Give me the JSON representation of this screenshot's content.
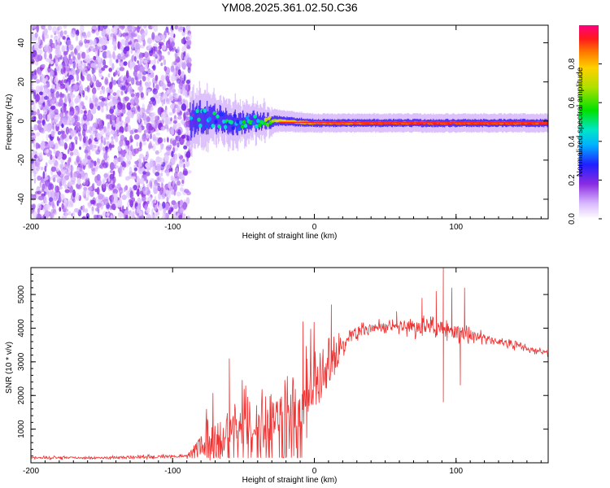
{
  "title": "YM08.2025.361.02.50.C36",
  "chart_data": [
    {
      "type": "heatmap",
      "xlabel": "Height of straight line (km)",
      "ylabel": "Frequency (Hz)",
      "xlim": [
        -200,
        165
      ],
      "ylim": [
        -50,
        49
      ],
      "xticks": [
        -200,
        -100,
        0,
        100
      ],
      "yticks": [
        -40,
        -20,
        0,
        20,
        40
      ],
      "noise_region": [
        -200,
        -88
      ],
      "signal_onset_km": -88,
      "ridge": [
        {
          "x": -88,
          "y": 0,
          "amp": 0.25,
          "spread": 8
        },
        {
          "x": -80,
          "y": 2,
          "amp": 0.45,
          "spread": 7
        },
        {
          "x": -70,
          "y": 1,
          "amp": 0.4,
          "spread": 6
        },
        {
          "x": -55,
          "y": -1,
          "amp": 0.4,
          "spread": 5
        },
        {
          "x": -40,
          "y": 0,
          "amp": 0.45,
          "spread": 4
        },
        {
          "x": -25,
          "y": 0,
          "amp": 0.75,
          "spread": 2.5
        },
        {
          "x": 0,
          "y": -1,
          "amp": 0.85,
          "spread": 2
        },
        {
          "x": 50,
          "y": -1,
          "amp": 0.9,
          "spread": 2
        },
        {
          "x": 100,
          "y": -1,
          "amp": 0.9,
          "spread": 2
        },
        {
          "x": 165,
          "y": -1,
          "amp": 0.9,
          "spread": 2
        }
      ],
      "colorbar": {
        "label": "Normalized spectral amplitude",
        "ticks": [
          "0.0",
          "0.2",
          "0.4",
          "0.6",
          "0.8"
        ],
        "range": [
          0,
          1
        ]
      }
    },
    {
      "type": "line",
      "xlabel": "Height of straight line (km)",
      "ylabel": "SNR (10 * v/v)",
      "xlim": [
        -200,
        165
      ],
      "ylim": [
        0,
        5800
      ],
      "xticks": [
        -200,
        -100,
        0,
        100
      ],
      "yticks": [
        1000,
        2000,
        3000,
        4000,
        5000
      ],
      "color": "#ee3333",
      "envelope": {
        "x": [
          -200,
          -150,
          -90,
          -80,
          -70,
          -50,
          -30,
          -10,
          10,
          25,
          40,
          60,
          80,
          100,
          120,
          140,
          165
        ],
        "base": [
          150,
          150,
          200,
          450,
          700,
          1000,
          1300,
          1700,
          2700,
          3800,
          4000,
          4050,
          4050,
          3900,
          3700,
          3500,
          3250
        ],
        "amp": [
          60,
          60,
          80,
          700,
          900,
          1000,
          1100,
          1300,
          1000,
          300,
          250,
          300,
          450,
          400,
          200,
          150,
          120
        ]
      },
      "spikes": [
        {
          "x": -60,
          "y": 3100
        },
        {
          "x": -8,
          "y": 4200
        },
        {
          "x": 12,
          "y": 4700
        },
        {
          "x": 58,
          "y": 4500
        },
        {
          "x": 76,
          "y": 4900
        },
        {
          "x": 86,
          "y": 5100
        },
        {
          "x": 91,
          "y": 5850
        },
        {
          "x": 91,
          "y": 1800
        },
        {
          "x": 97,
          "y": 5200
        },
        {
          "x": 103,
          "y": 2300
        },
        {
          "x": 106,
          "y": 5200
        }
      ]
    }
  ]
}
